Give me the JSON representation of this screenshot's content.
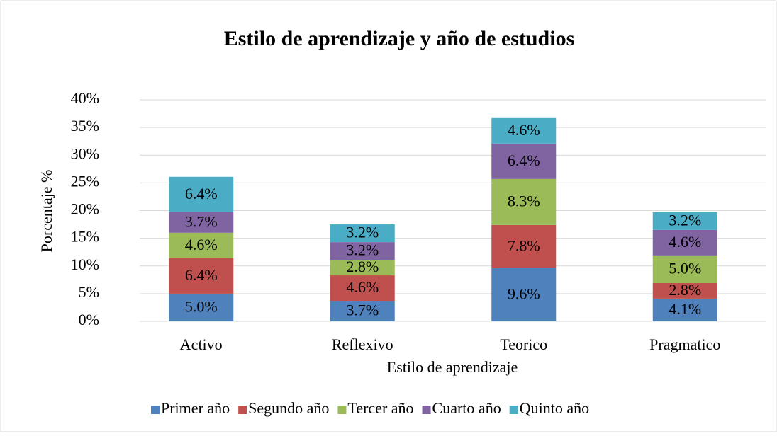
{
  "chart_data": {
    "type": "stacked_bar",
    "title": "Estilo de aprendizaje y año de estudios",
    "x_label": "Estilo de aprendizaje",
    "y_label": "Porcentaje %",
    "categories": [
      "Activo",
      "Reflexivo",
      "Teorico",
      "Pragmatico"
    ],
    "series": [
      {
        "name": "Primer año",
        "color": "#4f81bd",
        "values": [
          5.0,
          3.7,
          9.6,
          4.1
        ],
        "value_labels": [
          "5.0%",
          "3.7%",
          "9.6%",
          "4.1%"
        ]
      },
      {
        "name": "Segundo año",
        "color": "#c0504d",
        "values": [
          6.4,
          4.6,
          7.8,
          2.8
        ],
        "value_labels": [
          "6.4%",
          "4.6%",
          "7.8%",
          "2.8%"
        ]
      },
      {
        "name": "Tercer año",
        "color": "#9bbb59",
        "values": [
          4.6,
          2.8,
          8.3,
          5.0
        ],
        "value_labels": [
          "4.6%",
          "2.8%",
          "8.3%",
          "5.0%"
        ]
      },
      {
        "name": "Cuarto año",
        "color": "#8064a2",
        "values": [
          3.7,
          3.2,
          6.4,
          4.6
        ],
        "value_labels": [
          "3.7%",
          "3.2%",
          "6.4%",
          "4.6%"
        ]
      },
      {
        "name": "Quinto año",
        "color": "#4bacc6",
        "values": [
          6.4,
          3.2,
          4.6,
          3.2
        ],
        "value_labels": [
          "6.4%",
          "3.2%",
          "4.6%",
          "3.2%"
        ]
      }
    ],
    "ylim": [
      0,
      40
    ],
    "yticks": [
      {
        "value": 0,
        "label": "0%"
      },
      {
        "value": 5,
        "label": "5%"
      },
      {
        "value": 10,
        "label": "10%"
      },
      {
        "value": 15,
        "label": "15%"
      },
      {
        "value": 20,
        "label": "20%"
      },
      {
        "value": 25,
        "label": "25%"
      },
      {
        "value": 30,
        "label": "30%"
      },
      {
        "value": 35,
        "label": "35%"
      },
      {
        "value": 40,
        "label": "40%"
      }
    ],
    "grid": true,
    "legend": "bottom"
  }
}
